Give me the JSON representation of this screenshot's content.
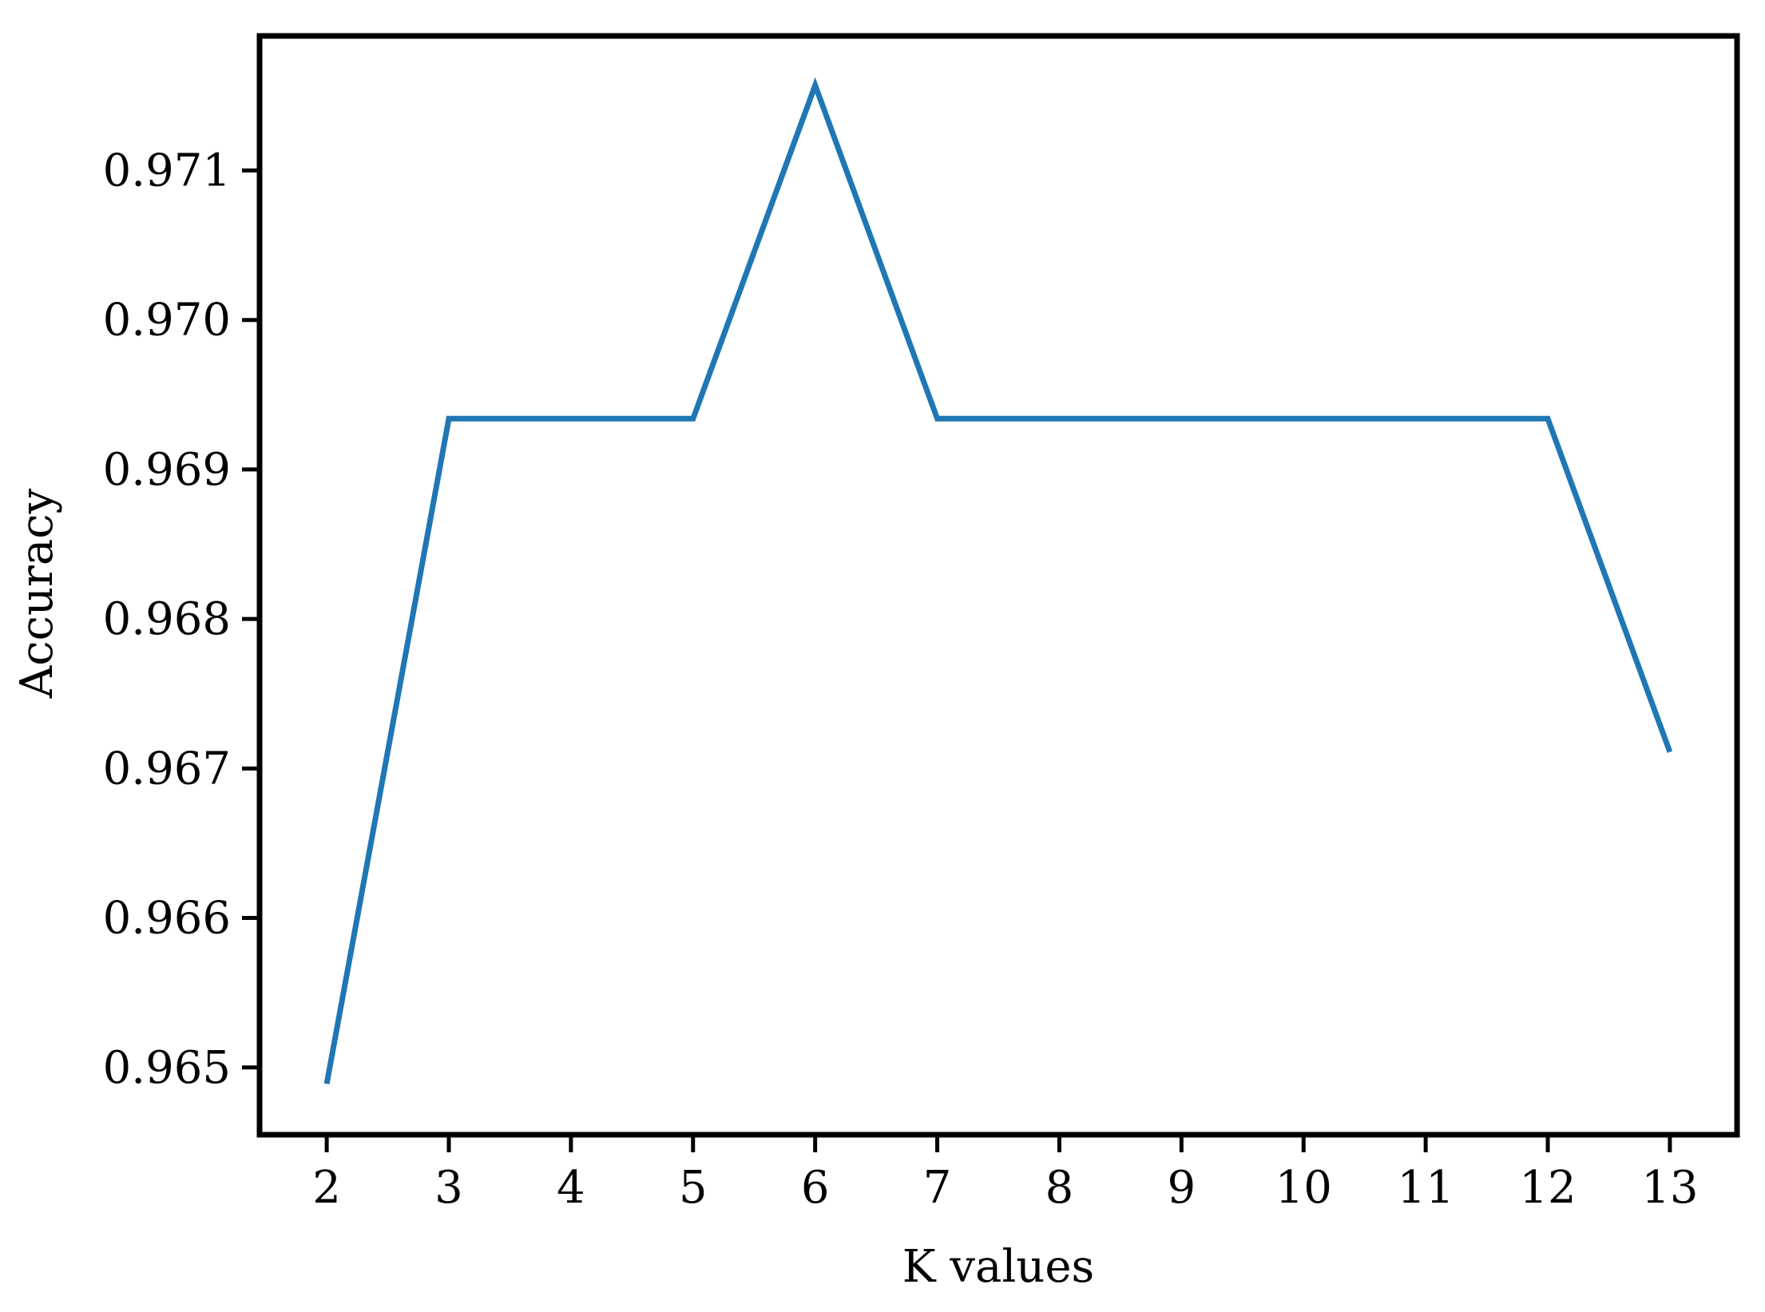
{
  "chart_data": {
    "type": "line",
    "title": "",
    "xlabel": "K values",
    "ylabel": "Accuracy",
    "x": [
      2,
      3,
      4,
      5,
      6,
      7,
      8,
      9,
      10,
      11,
      12,
      13
    ],
    "series": [
      {
        "values": [
          0.96489,
          0.96934,
          0.96934,
          0.96934,
          0.97157,
          0.96934,
          0.96934,
          0.96934,
          0.96934,
          0.96934,
          0.96934,
          0.96711
        ]
      }
    ],
    "xticks": [
      "2",
      "3",
      "4",
      "5",
      "6",
      "7",
      "8",
      "9",
      "10",
      "11",
      "12",
      "13"
    ],
    "yticks": [
      "0.965",
      "0.966",
      "0.967",
      "0.968",
      "0.969",
      "0.970",
      "0.971"
    ],
    "xlim": [
      1.45,
      13.55
    ],
    "ylim": [
      0.96455,
      0.9719
    ],
    "grid": false,
    "legend": "none",
    "line_color": "#1f77b4"
  }
}
